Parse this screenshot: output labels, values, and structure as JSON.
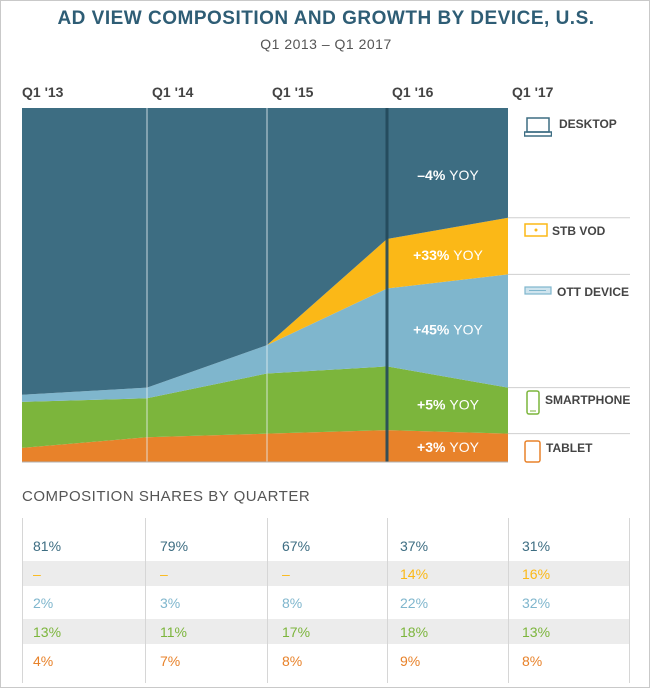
{
  "title": "AD VIEW  COMPOSITION AND GROWTH BY DEVICE, U.S.",
  "subtitle": "Q1 2013  –  Q1 2017",
  "colors": {
    "desktop": "#3d6d82",
    "stb_vod": "#fbb817",
    "ott_device": "#7fb6cd",
    "smartphone": "#7cb53c",
    "tablet": "#e8822a"
  },
  "chart_data": {
    "type": "area",
    "stacked": true,
    "x": [
      "Q1 '13",
      "Q1 '14",
      "Q1 '15",
      "Q1 '16",
      "Q1 '17"
    ],
    "series": [
      {
        "name": "TABLET",
        "values": [
          4,
          7,
          8,
          9,
          8
        ],
        "yoy": "+3% YOY",
        "icon": "tablet-icon"
      },
      {
        "name": "SMARTPHONE",
        "values": [
          13,
          11,
          17,
          18,
          13
        ],
        "yoy": "+5% YOY",
        "icon": "smartphone-icon"
      },
      {
        "name": "OTT DEVICE",
        "values": [
          2,
          3,
          8,
          22,
          32
        ],
        "yoy": "+45% YOY",
        "icon": "ott-device-icon"
      },
      {
        "name": "STB VOD",
        "values": [
          0,
          0,
          0,
          14,
          16
        ],
        "yoy": "+33% YOY",
        "icon": "stb-vod-icon"
      },
      {
        "name": "DESKTOP",
        "values": [
          81,
          79,
          67,
          37,
          31
        ],
        "yoy": "–4% YOY",
        "icon": "desktop-icon"
      }
    ],
    "ylim": [
      0,
      100
    ]
  },
  "composition": {
    "title": "COMPOSITION SHARES BY QUARTER",
    "rows": [
      {
        "key": "desktop",
        "cells": [
          "81%",
          "79%",
          "67%",
          "37%",
          "31%"
        ]
      },
      {
        "key": "stb_vod",
        "cells": [
          "–",
          "–",
          "–",
          "14%",
          "16%"
        ]
      },
      {
        "key": "ott_device",
        "cells": [
          "2%",
          "3%",
          "8%",
          "22%",
          "32%"
        ]
      },
      {
        "key": "smartphone",
        "cells": [
          "13%",
          "11%",
          "17%",
          "18%",
          "13%"
        ]
      },
      {
        "key": "tablet",
        "cells": [
          "4%",
          "7%",
          "8%",
          "9%",
          "8%"
        ]
      }
    ]
  }
}
